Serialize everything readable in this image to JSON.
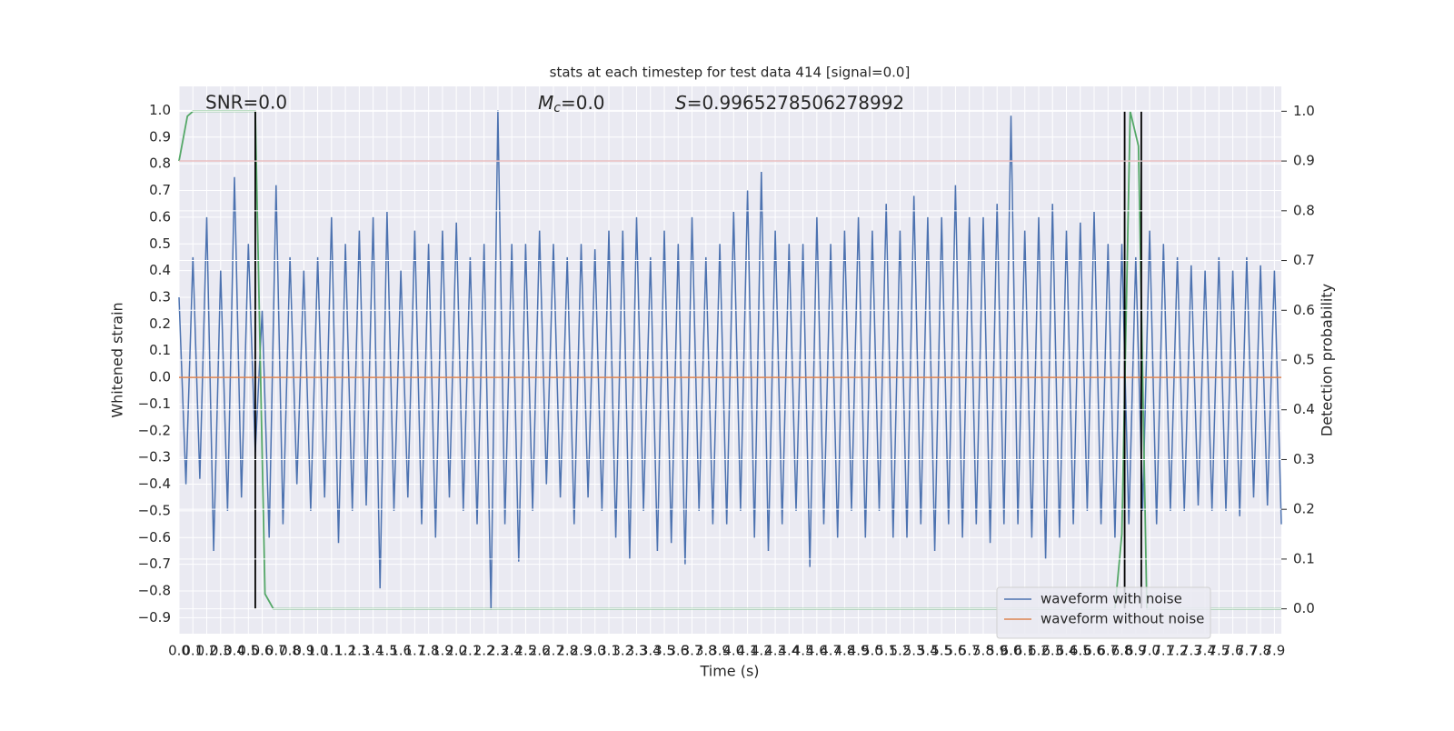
{
  "chart_data": {
    "type": "line",
    "title": "stats at each timestep for test data 414 [signal=0.0]",
    "xlabel": "Time (s)",
    "ylabel": "Whitened strain",
    "y2label": "Detection probability",
    "annotations": [
      {
        "text": "SNR=0.0"
      },
      {
        "symbol": "M",
        "sub": "c",
        "text": "=0.0"
      },
      {
        "symbol": "S",
        "text": "=0.9965278506278992"
      }
    ],
    "xlim": [
      0,
      7.95
    ],
    "ylim": [
      -0.96,
      1.09
    ],
    "y2lim": [
      -0.05,
      1.05
    ],
    "grid": true,
    "legend": "lower right",
    "xticks": [
      {
        "value": 0,
        "label": "0.0"
      },
      0.1,
      0.2,
      0.3,
      0.4,
      0.5,
      0.6,
      0.7,
      0.8,
      0.9,
      {
        "value": 1,
        "label": "1.0"
      },
      1.1,
      1.2,
      1.3,
      1.4,
      1.5,
      1.6,
      1.7,
      1.8,
      1.9,
      {
        "value": 2,
        "label": "2.0"
      },
      2.1,
      2.2,
      2.3,
      2.4,
      2.5,
      2.6,
      2.7,
      2.8,
      2.9,
      {
        "value": 3,
        "label": "3.0"
      },
      3.1,
      3.2,
      3.3,
      3.4,
      3.5,
      3.6,
      3.7,
      3.8,
      3.9,
      {
        "value": 4,
        "label": "4.0"
      },
      4.1,
      4.2,
      4.3,
      4.4,
      4.5,
      4.6,
      4.7,
      4.8,
      4.9,
      {
        "value": 5,
        "label": "5.0"
      },
      5.1,
      5.2,
      5.3,
      5.4,
      5.5,
      5.6,
      5.7,
      5.8,
      5.9,
      {
        "value": 6,
        "label": "6.0"
      },
      6.1,
      6.2,
      6.3,
      6.4,
      6.5,
      6.6,
      6.7,
      6.8,
      6.9,
      {
        "value": 7,
        "label": "7.0"
      },
      7.1,
      7.2,
      7.3,
      7.4,
      7.5,
      7.6,
      7.7,
      7.8,
      7.9
    ],
    "yticks": [
      {
        "value": -0.9,
        "label": "−0.9"
      },
      {
        "value": -0.8,
        "label": "−0.8"
      },
      {
        "value": -0.7,
        "label": "−0.7"
      },
      {
        "value": -0.6,
        "label": "−0.6"
      },
      {
        "value": -0.5,
        "label": "−0.5"
      },
      {
        "value": -0.4,
        "label": "−0.4"
      },
      {
        "value": -0.3,
        "label": "−0.3"
      },
      {
        "value": -0.2,
        "label": "−0.2"
      },
      {
        "value": -0.1,
        "label": "−0.1"
      },
      {
        "value": 0,
        "label": "0.0"
      },
      0.1,
      0.2,
      0.3,
      0.4,
      0.5,
      0.6,
      0.7,
      0.8,
      0.9,
      {
        "value": 1,
        "label": "1.0"
      }
    ],
    "y2ticks": [
      {
        "value": 0,
        "label": "0.0"
      },
      0.1,
      0.2,
      0.3,
      0.4,
      0.5,
      0.6,
      0.7,
      0.8,
      0.9,
      {
        "value": 1,
        "label": "1.0"
      }
    ],
    "series": [
      {
        "name": "waveform with noise",
        "color": "#4c72b0",
        "x": [
          0,
          0.05,
          0.1,
          0.15,
          0.2,
          0.25,
          0.3,
          0.35,
          0.4,
          0.45,
          0.5,
          0.55,
          0.6,
          0.65,
          0.7,
          0.75,
          0.8,
          0.85,
          0.9,
          0.95,
          1,
          1.05,
          1.1,
          1.15,
          1.2,
          1.25,
          1.3,
          1.35,
          1.4,
          1.45,
          1.5,
          1.55,
          1.6,
          1.65,
          1.7,
          1.75,
          1.8,
          1.85,
          1.9,
          1.95,
          2,
          2.05,
          2.1,
          2.15,
          2.2,
          2.25,
          2.3,
          2.35,
          2.4,
          2.45,
          2.5,
          2.55,
          2.6,
          2.65,
          2.7,
          2.75,
          2.8,
          2.85,
          2.9,
          2.95,
          3,
          3.05,
          3.1,
          3.15,
          3.2,
          3.25,
          3.3,
          3.35,
          3.4,
          3.45,
          3.5,
          3.55,
          3.6,
          3.65,
          3.7,
          3.75,
          3.8,
          3.85,
          3.9,
          3.95,
          4,
          4.05,
          4.1,
          4.15,
          4.2,
          4.25,
          4.3,
          4.35,
          4.4,
          4.45,
          4.5,
          4.55,
          4.6,
          4.65,
          4.7,
          4.75,
          4.8,
          4.85,
          4.9,
          4.95,
          5,
          5.05,
          5.1,
          5.15,
          5.2,
          5.25,
          5.3,
          5.35,
          5.4,
          5.45,
          5.5,
          5.55,
          5.6,
          5.65,
          5.7,
          5.75,
          5.8,
          5.85,
          5.9,
          5.95,
          6,
          6.05,
          6.1,
          6.15,
          6.2,
          6.25,
          6.3,
          6.35,
          6.4,
          6.45,
          6.5,
          6.55,
          6.6,
          6.65,
          6.7,
          6.75,
          6.8,
          6.85,
          6.9,
          6.95,
          7,
          7.05,
          7.1,
          7.15,
          7.2,
          7.25,
          7.3,
          7.35,
          7.4,
          7.45,
          7.5,
          7.55,
          7.6,
          7.65,
          7.7,
          7.75,
          7.8,
          7.85,
          7.9,
          7.95
        ],
        "values": [
          0.3,
          -0.4,
          0.45,
          -0.38,
          0.6,
          -0.65,
          0.4,
          -0.5,
          0.75,
          -0.45,
          0.5,
          -0.28,
          0.25,
          -0.6,
          0.72,
          -0.55,
          0.45,
          -0.4,
          0.4,
          -0.5,
          0.45,
          -0.45,
          0.6,
          -0.62,
          0.5,
          -0.5,
          0.55,
          -0.48,
          0.6,
          -0.79,
          0.62,
          -0.5,
          0.4,
          -0.45,
          0.55,
          -0.55,
          0.5,
          -0.6,
          0.55,
          -0.45,
          0.58,
          -0.5,
          0.45,
          -0.55,
          0.5,
          -0.87,
          1.0,
          -0.55,
          0.5,
          -0.69,
          0.5,
          -0.5,
          0.55,
          -0.4,
          0.5,
          -0.45,
          0.45,
          -0.55,
          0.5,
          -0.45,
          0.48,
          -0.5,
          0.55,
          -0.6,
          0.55,
          -0.68,
          0.6,
          -0.5,
          0.45,
          -0.65,
          0.55,
          -0.62,
          0.5,
          -0.7,
          0.6,
          -0.5,
          0.45,
          -0.55,
          0.5,
          -0.55,
          0.62,
          -0.5,
          0.7,
          -0.6,
          0.77,
          -0.65,
          0.55,
          -0.55,
          0.5,
          -0.5,
          0.5,
          -0.71,
          0.6,
          -0.55,
          0.5,
          -0.6,
          0.55,
          -0.5,
          0.6,
          -0.6,
          0.55,
          -0.5,
          0.65,
          -0.6,
          0.55,
          -0.6,
          0.68,
          -0.55,
          0.6,
          -0.65,
          0.6,
          -0.55,
          0.72,
          -0.6,
          0.6,
          -0.55,
          0.6,
          -0.62,
          0.65,
          -0.55,
          0.98,
          -0.55,
          0.55,
          -0.6,
          0.6,
          -0.68,
          0.65,
          -0.6,
          0.55,
          -0.55,
          0.58,
          -0.5,
          0.62,
          -0.55,
          0.5,
          -0.6,
          0.5,
          -0.55,
          0.45,
          -0.5,
          0.55,
          -0.55,
          0.5,
          -0.5,
          0.45,
          -0.5,
          0.42,
          -0.48,
          0.4,
          -0.5,
          0.45,
          -0.5,
          0.4,
          -0.52,
          0.45,
          -0.45,
          0.42,
          -0.48,
          0.4,
          -0.55
        ]
      },
      {
        "name": "waveform without noise",
        "color": "#dd8452",
        "x": [
          0,
          7.95
        ],
        "values": [
          0,
          0
        ]
      },
      {
        "color": "#55a868",
        "axis": "y2",
        "x": [
          0,
          0.06,
          0.1,
          0.55,
          0.62,
          0.68,
          6.75,
          6.8,
          6.86,
          6.92,
          6.98,
          7.95
        ],
        "values": [
          0.9,
          0.99,
          1.0,
          1.0,
          0.03,
          0,
          0,
          0.15,
          1.0,
          0.93,
          0,
          0
        ]
      }
    ],
    "hline": {
      "value": 0.9,
      "axis": "y2",
      "color": "#c44e52"
    },
    "vlines": {
      "x": [
        0.55,
        6.82,
        6.94
      ],
      "ymin": 0,
      "ymax": 1,
      "axis": "y2",
      "color": "#000000"
    }
  }
}
